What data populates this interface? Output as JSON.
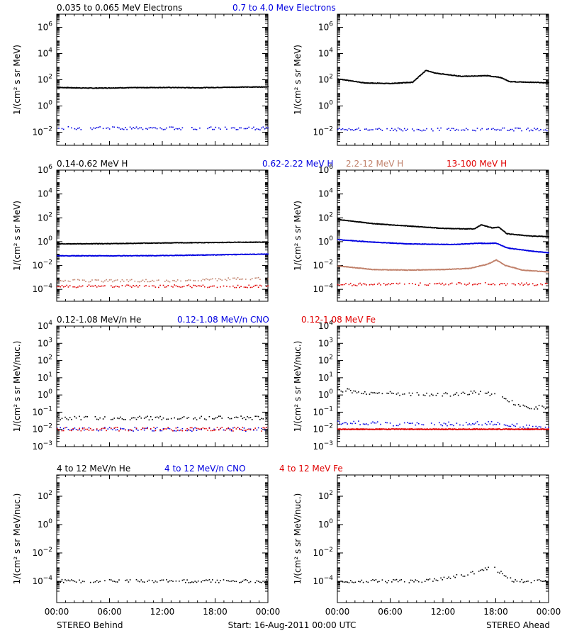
{
  "colors": {
    "black": "#000000",
    "blue": "#0000e0",
    "tan": "#c0806a",
    "red": "#e00000"
  },
  "footer": {
    "left": "STEREO Behind",
    "center": "Start: 16-Aug-2011 00:00 UTC",
    "right": "STEREO Ahead"
  },
  "chart_data": [
    {
      "type": "scatter",
      "row": 0,
      "panel": "STEREO Behind",
      "legend": [
        {
          "text": "0.035 to 0.065 MeV Electrons",
          "color": "#000000"
        },
        {
          "text": "0.7 to 4.0 Mev Electrons",
          "color": "#0000e0"
        }
      ],
      "ylabel": "1/(cm² s sr MeV)",
      "y_scale": "log",
      "ylim_exp": [
        -3,
        7
      ],
      "y_ticks_exp": [
        -2,
        0,
        2,
        4,
        6
      ],
      "x_ticks": [
        "00:00",
        "06:00",
        "12:00",
        "18:00",
        "00:00"
      ],
      "x_range_hours": [
        0,
        24
      ],
      "series": [
        {
          "color": "#000000",
          "dense": true,
          "points": [
            [
              0,
              1.4
            ],
            [
              4,
              1.35
            ],
            [
              8,
              1.38
            ],
            [
              12,
              1.4
            ],
            [
              16,
              1.38
            ],
            [
              20,
              1.42
            ],
            [
              24,
              1.45
            ]
          ]
        },
        {
          "color": "#0000e0",
          "dense": false,
          "points": [
            [
              0,
              -1.7
            ],
            [
              6,
              -1.7
            ],
            [
              12,
              -1.72
            ],
            [
              18,
              -1.7
            ],
            [
              24,
              -1.72
            ]
          ]
        }
      ]
    },
    {
      "type": "scatter",
      "row": 0,
      "panel": "STEREO Ahead",
      "legend": [],
      "ylabel": "1/(cm² s sr MeV)",
      "y_scale": "log",
      "ylim_exp": [
        -3,
        7
      ],
      "y_ticks_exp": [
        -2,
        0,
        2,
        4,
        6
      ],
      "x_ticks": [
        "00:00",
        "06:00",
        "12:00",
        "18:00",
        "00:00"
      ],
      "x_range_hours": [
        0,
        24
      ],
      "series": [
        {
          "color": "#000000",
          "dense": true,
          "points": [
            [
              0,
              2.05
            ],
            [
              3,
              1.75
            ],
            [
              6,
              1.7
            ],
            [
              8.5,
              1.8
            ],
            [
              10,
              2.7
            ],
            [
              11,
              2.5
            ],
            [
              14,
              2.25
            ],
            [
              17,
              2.3
            ],
            [
              18.5,
              2.15
            ],
            [
              19.5,
              1.85
            ],
            [
              24,
              1.75
            ]
          ]
        },
        {
          "color": "#0000e0",
          "dense": false,
          "points": [
            [
              0,
              -1.8
            ],
            [
              6,
              -1.8
            ],
            [
              12,
              -1.8
            ],
            [
              18,
              -1.8
            ],
            [
              24,
              -1.8
            ]
          ]
        }
      ]
    },
    {
      "type": "scatter",
      "row": 1,
      "panel": "STEREO Behind",
      "legend": [
        {
          "text": "0.14-0.62 MeV H",
          "color": "#000000"
        },
        {
          "text": "0.62-2.22 MeV H",
          "color": "#0000e0"
        },
        {
          "text": "2.2-12 MeV H",
          "color": "#c0806a"
        },
        {
          "text": "13-100 MeV H",
          "color": "#e00000"
        }
      ],
      "ylabel": "1/(cm² s sr MeV)",
      "y_scale": "log",
      "ylim_exp": [
        -5,
        6
      ],
      "y_ticks_exp": [
        -4,
        -2,
        0,
        2,
        4,
        6
      ],
      "x_ticks": [
        "00:00",
        "06:00",
        "12:00",
        "18:00",
        "00:00"
      ],
      "x_range_hours": [
        0,
        24
      ],
      "series": [
        {
          "color": "#000000",
          "dense": true,
          "points": [
            [
              0,
              -0.2
            ],
            [
              6,
              -0.18
            ],
            [
              12,
              -0.12
            ],
            [
              18,
              -0.08
            ],
            [
              24,
              -0.05
            ]
          ]
        },
        {
          "color": "#0000e0",
          "dense": true,
          "points": [
            [
              0,
              -1.2
            ],
            [
              6,
              -1.2
            ],
            [
              12,
              -1.18
            ],
            [
              18,
              -1.12
            ],
            [
              24,
              -1.05
            ]
          ]
        },
        {
          "color": "#c0806a",
          "dense": false,
          "points": [
            [
              0,
              -3.3
            ],
            [
              6,
              -3.3
            ],
            [
              12,
              -3.3
            ],
            [
              18,
              -3.2
            ],
            [
              24,
              -3.05
            ]
          ]
        },
        {
          "color": "#e00000",
          "dense": false,
          "points": [
            [
              0,
              -3.75
            ],
            [
              6,
              -3.75
            ],
            [
              12,
              -3.75
            ],
            [
              18,
              -3.75
            ],
            [
              24,
              -3.75
            ]
          ]
        }
      ]
    },
    {
      "type": "scatter",
      "row": 1,
      "panel": "STEREO Ahead",
      "legend": [],
      "ylabel": "1/(cm² s sr MeV)",
      "y_scale": "log",
      "ylim_exp": [
        -5,
        6
      ],
      "y_ticks_exp": [
        -4,
        -2,
        0,
        2,
        4,
        6
      ],
      "x_ticks": [
        "00:00",
        "06:00",
        "12:00",
        "18:00",
        "00:00"
      ],
      "x_range_hours": [
        0,
        24
      ],
      "series": [
        {
          "color": "#000000",
          "dense": true,
          "points": [
            [
              0,
              1.85
            ],
            [
              4,
              1.5
            ],
            [
              8,
              1.3
            ],
            [
              12,
              1.1
            ],
            [
              15.5,
              1.05
            ],
            [
              16.3,
              1.4
            ],
            [
              17.5,
              1.15
            ],
            [
              18.3,
              1.2
            ],
            [
              19.2,
              0.65
            ],
            [
              22,
              0.45
            ],
            [
              24,
              0.42
            ]
          ]
        },
        {
          "color": "#0000e0",
          "dense": true,
          "points": [
            [
              0,
              0.15
            ],
            [
              4,
              -0.05
            ],
            [
              8,
              -0.2
            ],
            [
              13,
              -0.25
            ],
            [
              16,
              -0.15
            ],
            [
              18,
              -0.15
            ],
            [
              19.3,
              -0.55
            ],
            [
              22,
              -0.8
            ],
            [
              24,
              -0.95
            ]
          ]
        },
        {
          "color": "#c0806a",
          "dense": true,
          "points": [
            [
              0,
              -2.05
            ],
            [
              4,
              -2.35
            ],
            [
              8,
              -2.4
            ],
            [
              12,
              -2.35
            ],
            [
              15,
              -2.25
            ],
            [
              17,
              -1.9
            ],
            [
              18,
              -1.55
            ],
            [
              19,
              -2.0
            ],
            [
              21,
              -2.4
            ],
            [
              24,
              -2.55
            ]
          ]
        },
        {
          "color": "#e00000",
          "dense": false,
          "points": [
            [
              0,
              -3.6
            ],
            [
              6,
              -3.6
            ],
            [
              12,
              -3.55
            ],
            [
              18,
              -3.55
            ],
            [
              24,
              -3.6
            ]
          ]
        }
      ]
    },
    {
      "type": "scatter",
      "row": 2,
      "panel": "STEREO Behind",
      "legend": [
        {
          "text": "0.12-1.08 MeV/n He",
          "color": "#000000"
        },
        {
          "text": "0.12-1.08 MeV/n CNO",
          "color": "#0000e0"
        },
        {
          "text": "0.12-1.08 MeV Fe",
          "color": "#e00000"
        }
      ],
      "ylabel": "1/(cm² s sr MeV/nuc.)",
      "y_scale": "log",
      "ylim_exp": [
        -3,
        4
      ],
      "y_ticks_exp": [
        -3,
        -2,
        -1,
        0,
        1,
        2,
        3,
        4
      ],
      "x_ticks": [
        "00:00",
        "06:00",
        "12:00",
        "18:00",
        "00:00"
      ],
      "x_range_hours": [
        0,
        24
      ],
      "series": [
        {
          "color": "#000000",
          "dense": false,
          "points": [
            [
              0,
              -1.35
            ],
            [
              6,
              -1.35
            ],
            [
              12,
              -1.35
            ],
            [
              18,
              -1.35
            ],
            [
              24,
              -1.35
            ]
          ]
        },
        {
          "color": "#0000e0",
          "dense": false,
          "points": [
            [
              0,
              -2.0
            ],
            [
              24,
              -2.0
            ]
          ]
        },
        {
          "color": "#e00000",
          "dense": false,
          "points": [
            [
              0,
              -2.0
            ],
            [
              24,
              -2.0
            ]
          ]
        }
      ]
    },
    {
      "type": "scatter",
      "row": 2,
      "panel": "STEREO Ahead",
      "legend": [],
      "ylabel": "1/(cm² s sr MeV/nuc.)",
      "y_scale": "log",
      "ylim_exp": [
        -3,
        4
      ],
      "y_ticks_exp": [
        -3,
        -2,
        -1,
        0,
        1,
        2,
        3,
        4
      ],
      "x_ticks": [
        "00:00",
        "06:00",
        "12:00",
        "18:00",
        "00:00"
      ],
      "x_range_hours": [
        0,
        24
      ],
      "series": [
        {
          "color": "#000000",
          "dense": false,
          "points": [
            [
              0,
              0.3
            ],
            [
              4,
              0.1
            ],
            [
              8,
              0.05
            ],
            [
              12,
              0.0
            ],
            [
              16,
              0.15
            ],
            [
              18,
              0.0
            ],
            [
              20,
              -0.5
            ],
            [
              22,
              -0.75
            ],
            [
              24,
              -0.7
            ]
          ]
        },
        {
          "color": "#0000e0",
          "dense": false,
          "points": [
            [
              0,
              -1.6
            ],
            [
              6,
              -1.7
            ],
            [
              12,
              -1.7
            ],
            [
              18,
              -1.65
            ],
            [
              24,
              -2.0
            ]
          ]
        },
        {
          "color": "#e00000",
          "dense": true,
          "points": [
            [
              0,
              -2.0
            ],
            [
              24,
              -2.0
            ]
          ]
        }
      ]
    },
    {
      "type": "scatter",
      "row": 3,
      "panel": "STEREO Behind",
      "legend": [
        {
          "text": "4 to 12 MeV/n He",
          "color": "#000000"
        },
        {
          "text": "4 to 12 MeV/n CNO",
          "color": "#0000e0"
        },
        {
          "text": "4 to 12 MeV Fe",
          "color": "#e00000"
        }
      ],
      "ylabel": "1/(cm² s sr MeV/nuc.)",
      "y_scale": "log",
      "ylim_exp": [
        -5.5,
        3.5
      ],
      "y_ticks_exp": [
        -4,
        -2,
        0,
        2
      ],
      "x_ticks": [
        "00:00",
        "06:00",
        "12:00",
        "18:00",
        "00:00"
      ],
      "x_range_hours": [
        0,
        24
      ],
      "series": [
        {
          "color": "#000000",
          "dense": false,
          "points": [
            [
              0,
              -4.0
            ],
            [
              24,
              -4.0
            ]
          ]
        }
      ]
    },
    {
      "type": "scatter",
      "row": 3,
      "panel": "STEREO Ahead",
      "legend": [],
      "ylabel": "1/(cm² s sr MeV/nuc.)",
      "y_scale": "log",
      "ylim_exp": [
        -5.5,
        3.5
      ],
      "y_ticks_exp": [
        -4,
        -2,
        0,
        2
      ],
      "x_ticks": [
        "00:00",
        "06:00",
        "12:00",
        "18:00",
        "00:00"
      ],
      "x_range_hours": [
        0,
        24
      ],
      "series": [
        {
          "color": "#000000",
          "dense": false,
          "points": [
            [
              0,
              -4.0
            ],
            [
              10,
              -4.0
            ],
            [
              12,
              -3.8
            ],
            [
              15,
              -3.5
            ],
            [
              17.5,
              -3.0
            ],
            [
              19,
              -3.6
            ],
            [
              20,
              -4.0
            ],
            [
              24,
              -4.0
            ]
          ]
        }
      ]
    }
  ]
}
